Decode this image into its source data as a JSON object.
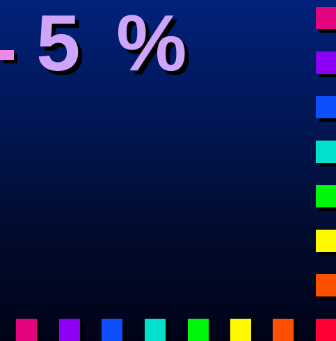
{
  "headline": {
    "text": "5 %",
    "color": "#cfa5fb"
  },
  "dash_color": "#ec8ae4",
  "palette": {
    "magenta": "#e2037e",
    "violet": "#8c00f3",
    "blue": "#0f4ffb",
    "teal": "#00e0cb",
    "green": "#00f70b",
    "yellow": "#fdf900",
    "orange": "#ff5000",
    "red": "#ff0033"
  },
  "right_column": [
    "magenta",
    "violet",
    "blue",
    "teal",
    "green",
    "yellow",
    "orange"
  ],
  "bottom_row": [
    "magenta",
    "violet",
    "blue",
    "teal",
    "green",
    "yellow",
    "orange",
    "red"
  ]
}
